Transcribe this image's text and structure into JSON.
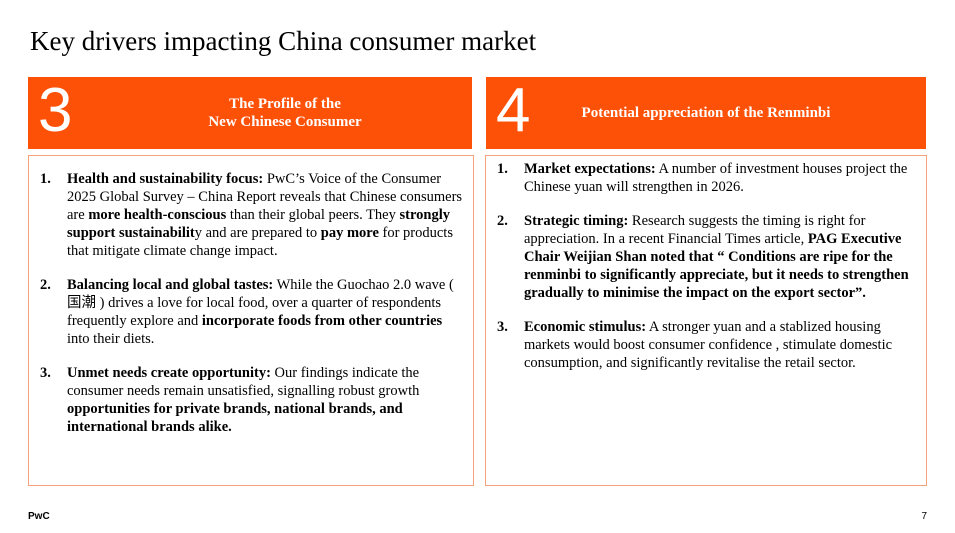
{
  "title": "Key drivers impacting China consumer market",
  "panels": [
    {
      "number": "3",
      "heading": [
        "The Profile of the",
        "New Chinese Consumer"
      ],
      "items": [
        {
          "marker": "1.",
          "runs": [
            {
              "text": "Health and sustainability focus:",
              "bold": true
            },
            {
              "text": " PwC’s Voice of the Consumer 2025 Global Survey – China Report reveals that Chinese consumers are ",
              "bold": false
            },
            {
              "text": "more health-conscious",
              "bold": true
            },
            {
              "text": " than their global peers. They ",
              "bold": false
            },
            {
              "text": "strongly support sustainabilit",
              "bold": true
            },
            {
              "text": "y and are prepared to ",
              "bold": false
            },
            {
              "text": "pay more",
              "bold": true
            },
            {
              "text": " for products that mitigate climate change impact.",
              "bold": false
            }
          ]
        },
        {
          "marker": "2.",
          "runs": [
            {
              "text": "Balancing local and global tastes:",
              "bold": true
            },
            {
              "text": " While the Guochao 2.0 wave ( 国潮 ) drives a love for local food, over a quarter of respondents frequently explore and ",
              "bold": false
            },
            {
              "text": "incorporate foods from other countries",
              "bold": true
            },
            {
              "text": " into their diets.",
              "bold": false
            }
          ]
        },
        {
          "marker": "3.",
          "runs": [
            {
              "text": "Unmet needs create opportunity:",
              "bold": true
            },
            {
              "text": " Our findings indicate the consumer needs remain unsatisfied, signalling robust growth ",
              "bold": false
            },
            {
              "text": "opportunities for private brands, national brands, and international brands alike.",
              "bold": true
            }
          ]
        }
      ]
    },
    {
      "number": "4",
      "heading": [
        "Potential appreciation of the Renminbi"
      ],
      "items": [
        {
          "marker": "1.",
          "runs": [
            {
              "text": "Market expectations:",
              "bold": true
            },
            {
              "text": " A number of investment houses project the Chinese yuan will strengthen in 2026.",
              "bold": false
            }
          ]
        },
        {
          "marker": "2.",
          "runs": [
            {
              "text": "Strategic timing:",
              "bold": true
            },
            {
              "text": " Research suggests the timing is right for appreciation. In a recent Financial Times article, ",
              "bold": false
            },
            {
              "text": "PAG Executive Chair Weijian Shan noted that “ Conditions are ripe for the renminbi to significantly appreciate, but it needs to strengthen gradually to minimise the impact on the export sector”.",
              "bold": true
            }
          ]
        },
        {
          "marker": "3.",
          "runs": [
            {
              "text": "Economic stimulus:",
              "bold": true
            },
            {
              "text": " A stronger yuan and a stablized housing markets would boost consumer confidence , stimulate domestic consumption, and significantly revitalise the retail sector.",
              "bold": false
            }
          ]
        }
      ]
    }
  ],
  "footer": {
    "brand": "PwC",
    "page": "7"
  }
}
